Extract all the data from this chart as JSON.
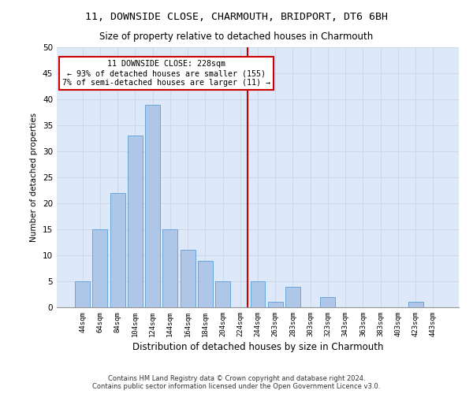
{
  "title": "11, DOWNSIDE CLOSE, CHARMOUTH, BRIDPORT, DT6 6BH",
  "subtitle": "Size of property relative to detached houses in Charmouth",
  "xlabel": "Distribution of detached houses by size in Charmouth",
  "ylabel": "Number of detached properties",
  "bin_labels": [
    "44sqm",
    "64sqm",
    "84sqm",
    "104sqm",
    "124sqm",
    "144sqm",
    "164sqm",
    "184sqm",
    "204sqm",
    "224sqm",
    "244sqm",
    "263sqm",
    "283sqm",
    "303sqm",
    "323sqm",
    "343sqm",
    "363sqm",
    "383sqm",
    "403sqm",
    "423sqm",
    "443sqm"
  ],
  "bar_values": [
    5,
    15,
    22,
    33,
    39,
    15,
    11,
    9,
    5,
    0,
    5,
    1,
    4,
    0,
    2,
    0,
    0,
    0,
    0,
    1,
    0
  ],
  "bar_color": "#aec6e8",
  "bar_edge_color": "#5a9fd4",
  "vline_color": "#cc0000",
  "vline_label_title": "11 DOWNSIDE CLOSE: 228sqm",
  "vline_label_line2": "← 93% of detached houses are smaller (155)",
  "vline_label_line3": "7% of semi-detached houses are larger (11) →",
  "annotation_box_color": "#cc0000",
  "ylim": [
    0,
    50
  ],
  "yticks": [
    0,
    5,
    10,
    15,
    20,
    25,
    30,
    35,
    40,
    45,
    50
  ],
  "grid_color": "#d0d8e8",
  "background_color": "#dde8f8",
  "footer_line1": "Contains HM Land Registry data © Crown copyright and database right 2024.",
  "footer_line2": "Contains public sector information licensed under the Open Government Licence v3.0."
}
